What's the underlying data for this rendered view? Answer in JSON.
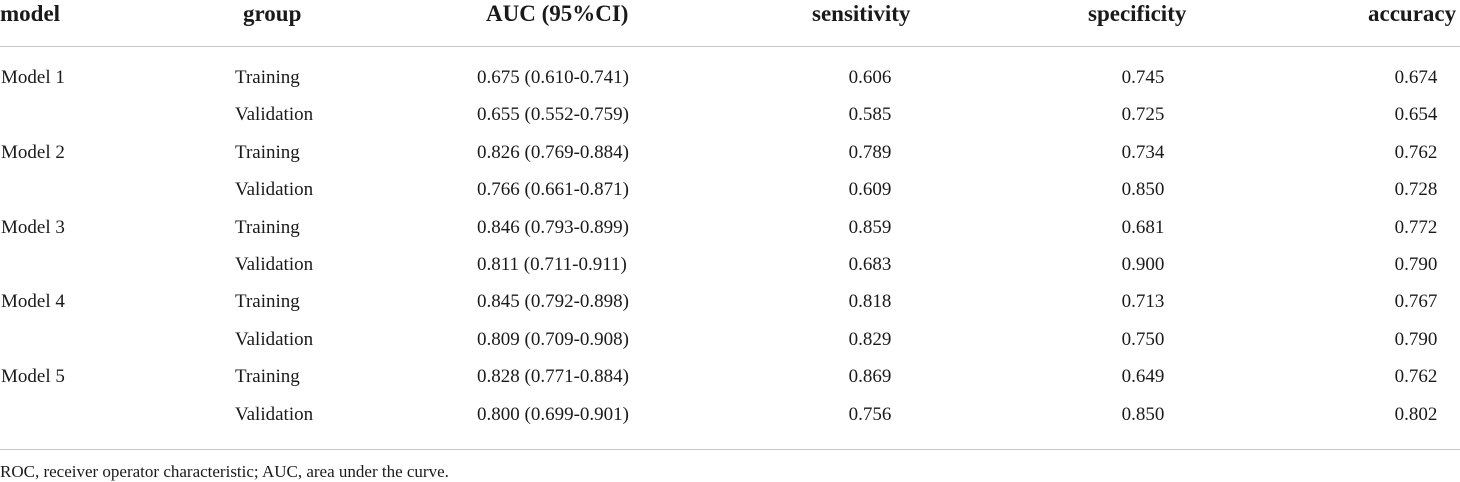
{
  "table": {
    "headers": {
      "model": "model",
      "group": "group",
      "auc": "AUC (95%CI)",
      "sensitivity": "sensitivity",
      "specificity": "specificity",
      "accuracy": "accuracy"
    },
    "rows": [
      {
        "model": "Model 1",
        "group": "Training",
        "auc": "0.675 (0.610-0.741)",
        "sensitivity": "0.606",
        "specificity": "0.745",
        "accuracy": "0.674"
      },
      {
        "model": "",
        "group": "Validation",
        "auc": "0.655 (0.552-0.759)",
        "sensitivity": "0.585",
        "specificity": "0.725",
        "accuracy": "0.654"
      },
      {
        "model": "Model 2",
        "group": "Training",
        "auc": "0.826 (0.769-0.884)",
        "sensitivity": "0.789",
        "specificity": "0.734",
        "accuracy": "0.762"
      },
      {
        "model": "",
        "group": "Validation",
        "auc": "0.766 (0.661-0.871)",
        "sensitivity": "0.609",
        "specificity": "0.850",
        "accuracy": "0.728"
      },
      {
        "model": "Model 3",
        "group": "Training",
        "auc": "0.846 (0.793-0.899)",
        "sensitivity": "0.859",
        "specificity": "0.681",
        "accuracy": "0.772"
      },
      {
        "model": "",
        "group": "Validation",
        "auc": "0.811 (0.711-0.911)",
        "sensitivity": "0.683",
        "specificity": "0.900",
        "accuracy": "0.790"
      },
      {
        "model": "Model 4",
        "group": "Training",
        "auc": "0.845 (0.792-0.898)",
        "sensitivity": "0.818",
        "specificity": "0.713",
        "accuracy": "0.767"
      },
      {
        "model": "",
        "group": "Validation",
        "auc": "0.809 (0.709-0.908)",
        "sensitivity": "0.829",
        "specificity": "0.750",
        "accuracy": "0.790"
      },
      {
        "model": "Model 5",
        "group": "Training",
        "auc": "0.828 (0.771-0.884)",
        "sensitivity": "0.869",
        "specificity": "0.649",
        "accuracy": "0.762"
      },
      {
        "model": "",
        "group": "Validation",
        "auc": "0.800 (0.699-0.901)",
        "sensitivity": "0.756",
        "specificity": "0.850",
        "accuracy": "0.802"
      }
    ],
    "footnote": "ROC, receiver operator characteristic; AUC, area under the curve."
  }
}
